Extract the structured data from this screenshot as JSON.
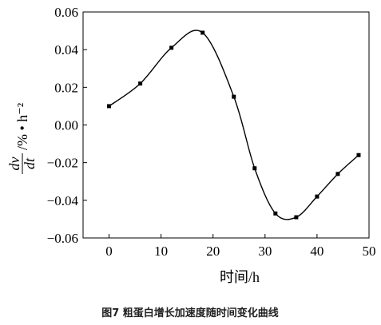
{
  "chart_data": {
    "type": "scatter",
    "x": [
      0,
      6,
      12,
      18,
      24,
      28,
      32,
      36,
      40,
      44,
      48
    ],
    "y": [
      0.01,
      0.022,
      0.041,
      0.049,
      0.015,
      -0.023,
      -0.047,
      -0.049,
      -0.038,
      -0.026,
      -0.016
    ],
    "fit_curve": "smooth",
    "xlim": [
      -5,
      50
    ],
    "ylim": [
      -0.06,
      0.06
    ],
    "xticks": [
      0,
      10,
      20,
      30,
      40,
      50
    ],
    "yticks": [
      0.06,
      0.04,
      0.02,
      0.0,
      -0.02,
      -0.04,
      -0.06
    ],
    "xtick_labels": [
      "0",
      "10",
      "20",
      "30",
      "40",
      "50"
    ],
    "ytick_labels": [
      "0.06",
      "0.04",
      "0.02",
      "0.00",
      "−0.02",
      "−0.04",
      "−0.06"
    ],
    "xlabel": "时间/h",
    "ylabel": {
      "numerator": "dv",
      "denominator": "dt",
      "unit": "/% • h⁻²"
    },
    "caption": "图7 粗蛋白增长加速度随时间变化曲线",
    "grid": false,
    "marker_color": "#000000",
    "line_color": "#000000"
  }
}
